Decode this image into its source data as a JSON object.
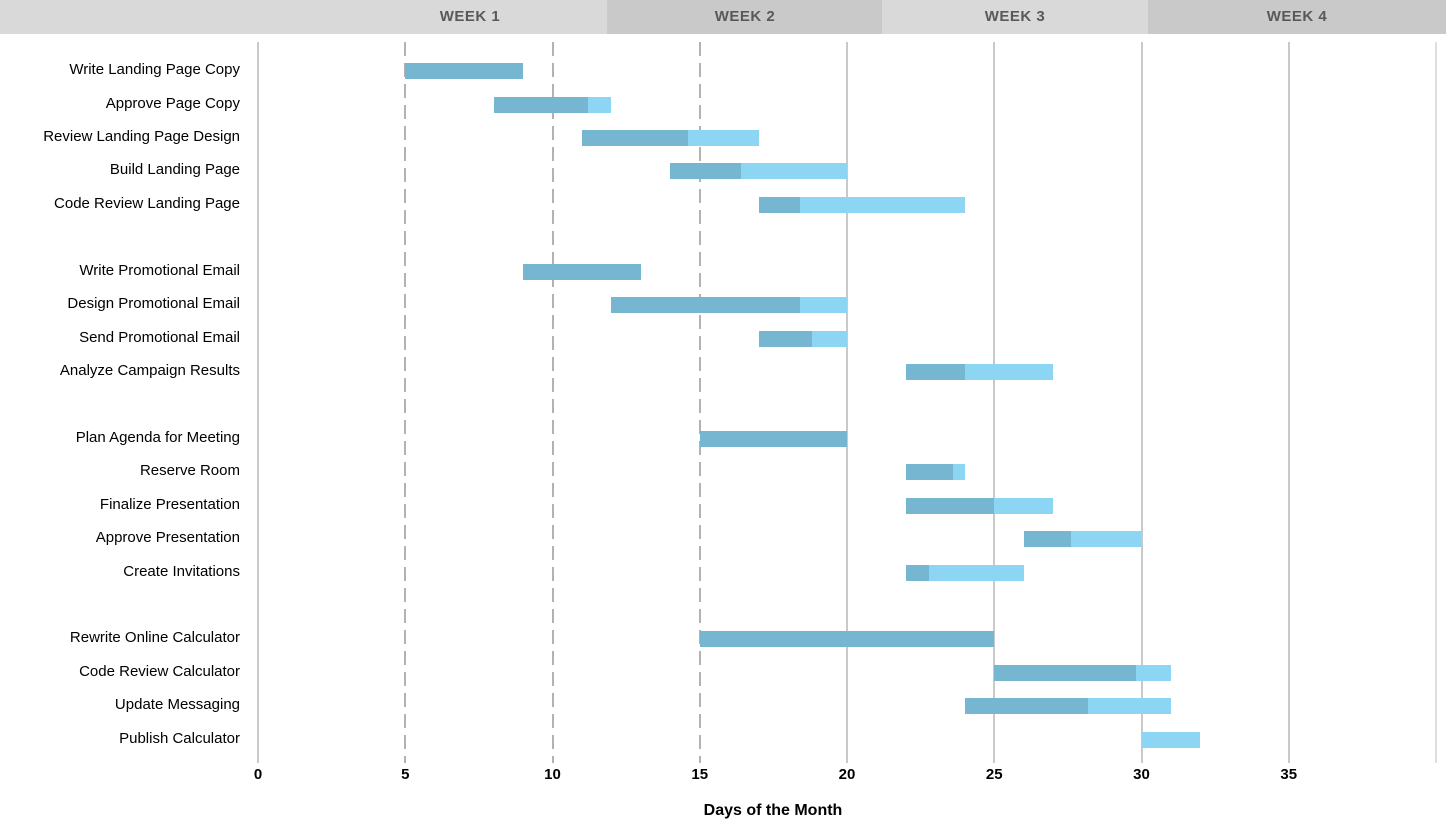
{
  "header": {
    "week_labels": [
      "WEEK 1",
      "WEEK 2",
      "WEEK 3",
      "WEEK 4"
    ]
  },
  "colors": {
    "header_band_light": "#d9d9d9",
    "header_band_dark": "#c9c9c9",
    "header_text": "#595959",
    "bar_complete": "#76b6d1",
    "bar_remaining": "#8cd5f3",
    "gridline_solid": "#c9c9c9",
    "gridline_dashed": "#b2b2b2",
    "gridline_faint": "#dedede",
    "text": "#000000"
  },
  "chart_data": {
    "type": "bar",
    "subtype": "gantt",
    "title": "",
    "xlabel": "Days of the Month",
    "ylabel": "",
    "xlim": [
      0,
      40
    ],
    "x_ticks": [
      0,
      5,
      10,
      15,
      20,
      25,
      30,
      35
    ],
    "gridlines": {
      "dashed_days": [
        5,
        10,
        15
      ],
      "solid_days": [
        0,
        20,
        25,
        30,
        35
      ],
      "faint_days": [
        40
      ]
    },
    "legend": "none",
    "bar_meaning": {
      "dark_segment": "completed portion of task",
      "light_segment": "remaining portion of task"
    },
    "groups": [
      {
        "tasks": [
          {
            "label": "Write Landing Page Copy",
            "start": 5,
            "end": 9,
            "progress": 1.0
          },
          {
            "label": "Approve Page Copy",
            "start": 8,
            "end": 12,
            "progress": 0.8
          },
          {
            "label": "Review Landing Page Design",
            "start": 11,
            "end": 17,
            "progress": 0.6
          },
          {
            "label": "Build Landing Page",
            "start": 14,
            "end": 20,
            "progress": 0.4
          },
          {
            "label": "Code Review Landing Page",
            "start": 17,
            "end": 24,
            "progress": 0.2
          }
        ]
      },
      {
        "tasks": [
          {
            "label": "Write Promotional Email",
            "start": 9,
            "end": 13,
            "progress": 1.0
          },
          {
            "label": "Design Promotional Email",
            "start": 12,
            "end": 20,
            "progress": 0.8
          },
          {
            "label": "Send Promotional Email",
            "start": 17,
            "end": 20,
            "progress": 0.6
          },
          {
            "label": "Analyze Campaign Results",
            "start": 22,
            "end": 27,
            "progress": 0.4
          }
        ]
      },
      {
        "tasks": [
          {
            "label": "Plan Agenda for Meeting",
            "start": 15,
            "end": 20,
            "progress": 1.0
          },
          {
            "label": "Reserve Room",
            "start": 22,
            "end": 24,
            "progress": 0.8
          },
          {
            "label": "Finalize Presentation",
            "start": 22,
            "end": 27,
            "progress": 0.6
          },
          {
            "label": "Approve Presentation",
            "start": 26,
            "end": 30,
            "progress": 0.4
          },
          {
            "label": "Create Invitations",
            "start": 22,
            "end": 26,
            "progress": 0.2
          }
        ]
      },
      {
        "tasks": [
          {
            "label": "Rewrite Online Calculator",
            "start": 15,
            "end": 25,
            "progress": 1.0
          },
          {
            "label": "Code Review Calculator",
            "start": 25,
            "end": 31,
            "progress": 0.8
          },
          {
            "label": "Update Messaging",
            "start": 24,
            "end": 31,
            "progress": 0.6
          },
          {
            "label": "Publish Calculator",
            "start": 30,
            "end": 32,
            "progress": 0.0
          }
        ]
      }
    ]
  }
}
